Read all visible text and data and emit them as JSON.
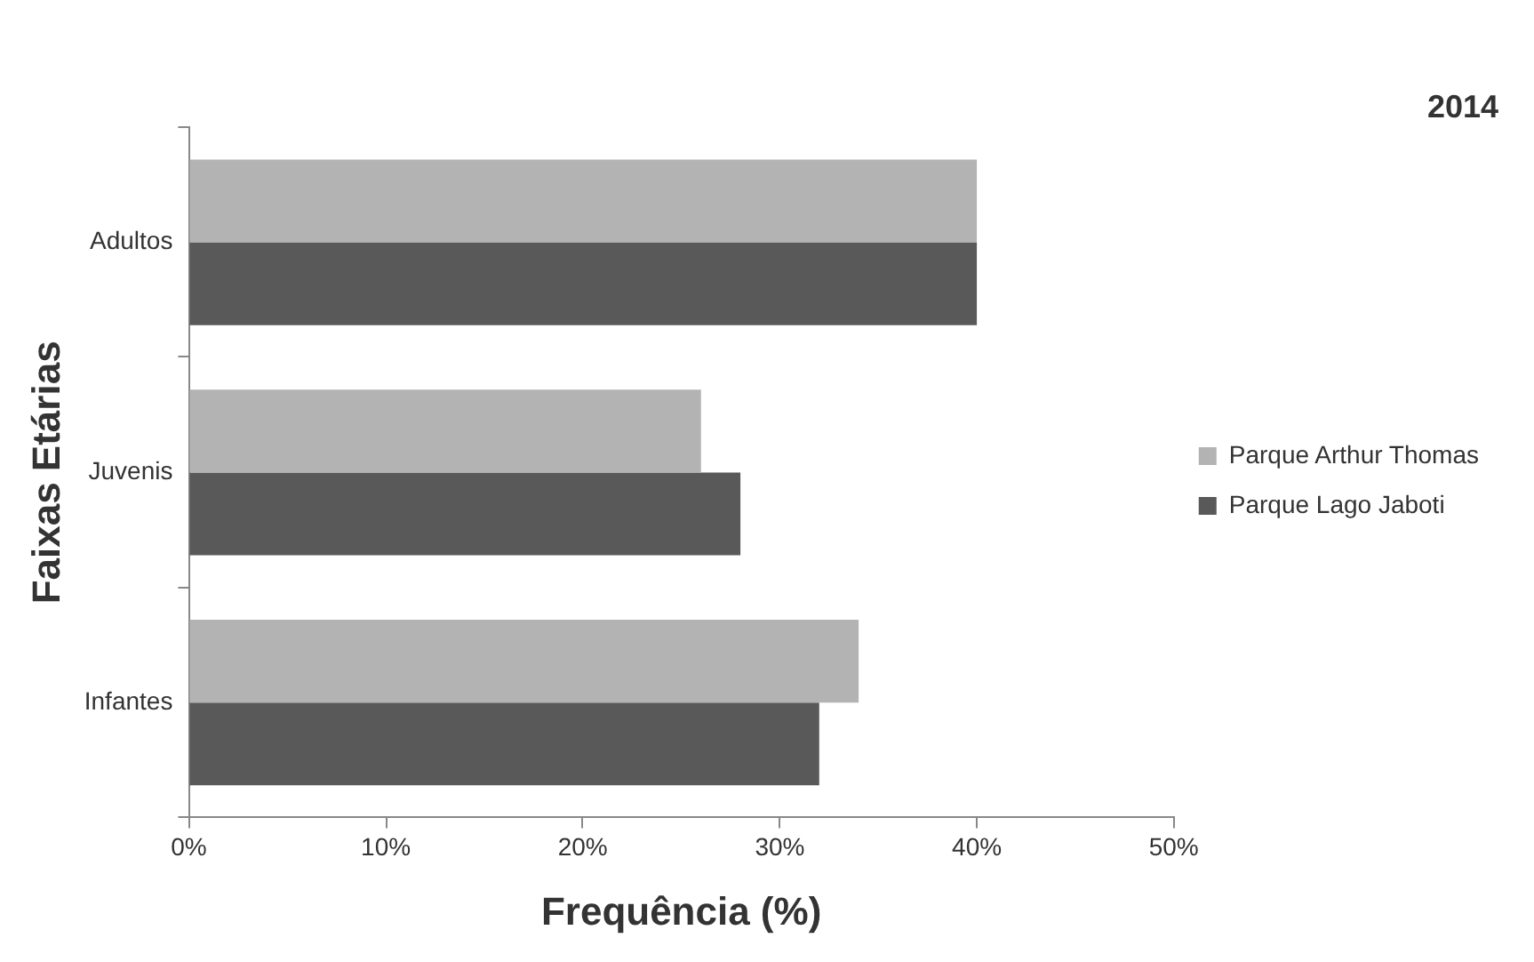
{
  "chart_data": {
    "type": "bar",
    "orientation": "horizontal",
    "title": "2014",
    "xlabel": "Frequência (%)",
    "ylabel": "Faixas Etárias",
    "categories": [
      "Adultos",
      "Juvenis",
      "Infantes"
    ],
    "series": [
      {
        "name": "Parque Arthur Thomas",
        "color": "#b3b3b3",
        "values": [
          40,
          26,
          34
        ]
      },
      {
        "name": "Parque Lago Jaboti",
        "color": "#595959",
        "values": [
          40,
          28,
          32
        ]
      }
    ],
    "xlim": [
      0,
      50
    ],
    "xticks": [
      {
        "value": 0,
        "label": "0%"
      },
      {
        "value": 10,
        "label": "10%"
      },
      {
        "value": 20,
        "label": "20%"
      },
      {
        "value": 30,
        "label": "30%"
      },
      {
        "value": 40,
        "label": "40%"
      },
      {
        "value": 50,
        "label": "50%"
      }
    ],
    "grid": false,
    "legend": "right"
  }
}
